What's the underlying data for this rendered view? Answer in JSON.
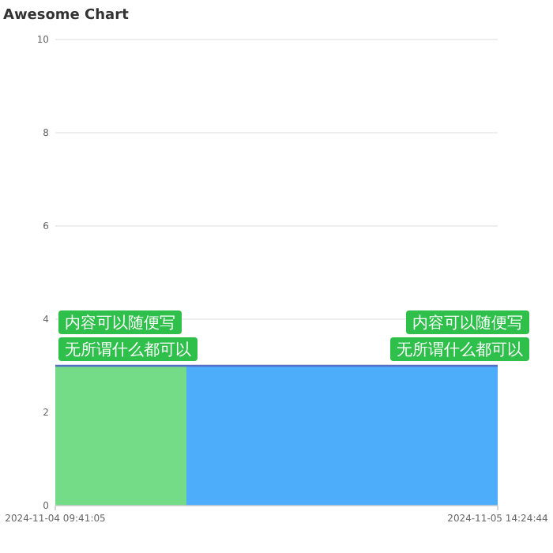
{
  "chart_data": {
    "type": "area",
    "title": "Awesome Chart",
    "series": [
      {
        "x": [
          "2024-11-04T09:41:05",
          "2024-11-04T18:12"
        ],
        "values": [
          3,
          3
        ],
        "color": "#74db86"
      },
      {
        "x": [
          "2024-11-04T18:12",
          "2024-11-05T14:24:44"
        ],
        "values": [
          3,
          3
        ],
        "color": "#4dadfb"
      }
    ],
    "xlim": [
      "2024-11-04T09:41:05",
      "2024-11-05T14:24:44"
    ],
    "xticks": [
      {
        "value": "2024-11-04T09:41:05",
        "label": "2024-11-04 09:41:05"
      },
      {
        "value": "2024-11-05T14:24:44",
        "label": "2024-11-05 14:24:44"
      }
    ],
    "ylim": [
      0,
      10
    ],
    "yticks": [
      0,
      2,
      4,
      6,
      8,
      10
    ],
    "grid": "y",
    "annotations": [
      {
        "text": "内容可以随便写",
        "x": "2024-11-04T09:41:05",
        "y": 3
      },
      {
        "text": "无所谓什么都可以",
        "x": "2024-11-04T09:41:05",
        "y": 3
      },
      {
        "text": "内容可以随便写",
        "x": "2024-11-05T14:24:44",
        "y": 3
      },
      {
        "text": "无所谓什么都可以",
        "x": "2024-11-05T14:24:44",
        "y": 3
      }
    ]
  }
}
